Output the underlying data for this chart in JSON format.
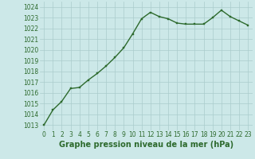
{
  "hours": [
    0,
    1,
    2,
    3,
    4,
    5,
    6,
    7,
    8,
    9,
    10,
    11,
    12,
    13,
    14,
    15,
    16,
    17,
    18,
    19,
    20,
    21,
    22,
    23
  ],
  "pressure": [
    1013.0,
    1014.4,
    1015.2,
    1016.4,
    1016.5,
    1017.2,
    1017.8,
    1018.5,
    1019.3,
    1020.2,
    1021.5,
    1022.9,
    1023.5,
    1023.1,
    1022.9,
    1022.5,
    1022.4,
    1022.4,
    1022.4,
    1023.0,
    1023.7,
    1023.1,
    1022.7,
    1022.3
  ],
  "line_color": "#2d6a2d",
  "marker": "s",
  "marker_size": 2.0,
  "bg_color": "#cce8e8",
  "grid_color": "#aacccc",
  "xlabel": "Graphe pression niveau de la mer (hPa)",
  "xlabel_fontsize": 7,
  "ylim": [
    1012.5,
    1024.5
  ],
  "yticks": [
    1013,
    1014,
    1015,
    1016,
    1017,
    1018,
    1019,
    1020,
    1021,
    1022,
    1023,
    1024
  ],
  "xticks": [
    0,
    1,
    2,
    3,
    4,
    5,
    6,
    7,
    8,
    9,
    10,
    11,
    12,
    13,
    14,
    15,
    16,
    17,
    18,
    19,
    20,
    21,
    22,
    23
  ],
  "tick_fontsize": 5.5,
  "tick_color": "#2d6a2d",
  "line_width": 1.0
}
